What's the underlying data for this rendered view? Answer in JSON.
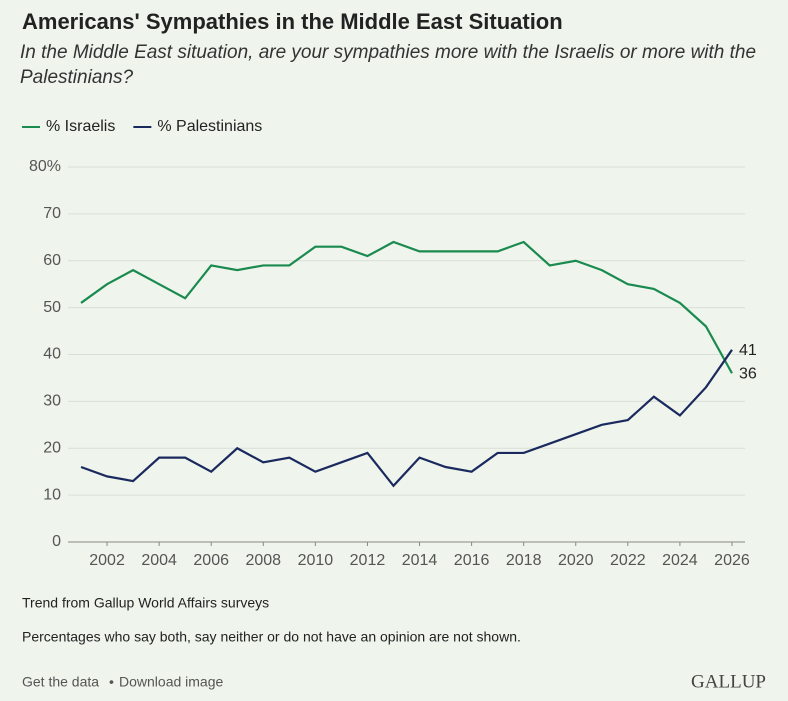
{
  "chart_data": {
    "type": "line",
    "title": "Americans' Sympathies in the Middle East Situation",
    "subtitle": "In the Middle East situation, are your sympathies more with the Israelis or more with the Palestinians?",
    "x": [
      2001,
      2002,
      2003,
      2004,
      2005,
      2006,
      2007,
      2008,
      2009,
      2010,
      2011,
      2012,
      2013,
      2014,
      2015,
      2016,
      2017,
      2018,
      2019,
      2020,
      2021,
      2022,
      2023,
      2024,
      2025,
      2026
    ],
    "series": [
      {
        "name": "% Israelis",
        "color": "#1a8a4f",
        "values": [
          51,
          55,
          58,
          55,
          52,
          59,
          58,
          59,
          59,
          63,
          63,
          61,
          64,
          62,
          62,
          62,
          62,
          64,
          59,
          60,
          58,
          55,
          54,
          51,
          46,
          36
        ],
        "value_labels": [
          null,
          null,
          null,
          null,
          null,
          null,
          null,
          null,
          null,
          null,
          null,
          null,
          null,
          null,
          null,
          null,
          null,
          null,
          null,
          null,
          null,
          null,
          null,
          null,
          null,
          "36"
        ]
      },
      {
        "name": "% Palestinians",
        "color": "#1b2a5e",
        "values": [
          16,
          14,
          13,
          18,
          18,
          15,
          20,
          17,
          18,
          15,
          17,
          19,
          12,
          18,
          16,
          15,
          19,
          19,
          21,
          23,
          25,
          26,
          31,
          27,
          33,
          41
        ],
        "value_labels": [
          null,
          null,
          null,
          null,
          null,
          null,
          null,
          null,
          null,
          null,
          null,
          null,
          null,
          null,
          null,
          null,
          null,
          null,
          null,
          null,
          null,
          null,
          null,
          null,
          null,
          "41"
        ]
      }
    ],
    "xlim": [
      2000.5,
      2026.5
    ],
    "xticks": [
      2002,
      2004,
      2006,
      2008,
      2010,
      2012,
      2014,
      2016,
      2018,
      2020,
      2022,
      2024,
      2026
    ],
    "ylim": [
      0,
      80
    ],
    "yticks": [
      0,
      10,
      20,
      30,
      40,
      50,
      60,
      70,
      {
        "value": 80,
        "label": "80%"
      }
    ],
    "grid": true,
    "notes": [
      "Trend from Gallup World Affairs surveys",
      "Percentages who say both, say neither or do not have an opinion are not shown."
    ],
    "footer": {
      "links": [
        "Get the data",
        "Download image"
      ],
      "separator": "•",
      "brand": "GALLUP"
    }
  }
}
